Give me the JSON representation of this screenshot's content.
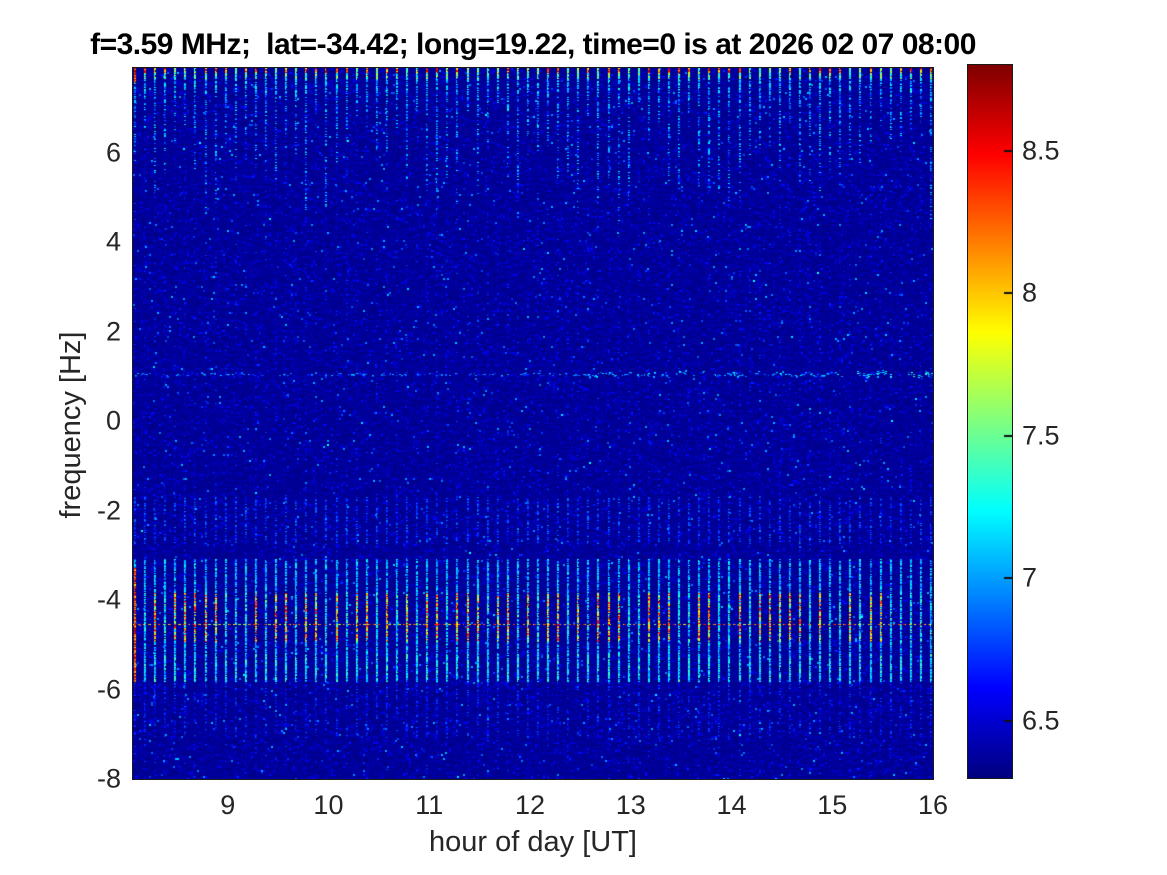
{
  "chart_data": {
    "type": "heatmap",
    "title": "f=3.59 MHz;  lat=-34.42; long=19.22, time=0 is at 2026 02 07 08:00",
    "xlabel": "hour of day [UT]",
    "ylabel": "frequency [Hz]",
    "xlim": [
      8.06,
      16
    ],
    "ylim": [
      -8,
      7.9
    ],
    "x_ticks": [
      9,
      10,
      11,
      12,
      13,
      14,
      15,
      16
    ],
    "y_ticks": [
      6,
      4,
      2,
      0,
      -2,
      -4,
      -6,
      -8
    ],
    "grid": false,
    "colorbar": {
      "min": 6.3,
      "max": 8.8,
      "ticks": [
        8.5,
        8,
        7.5,
        7,
        6.5
      ],
      "colormap": "jet",
      "position": "right"
    },
    "background_level": 6.35,
    "pulses": {
      "period_hours": 0.1,
      "start_hour": 8.07,
      "first_pulse_strong": true,
      "bands": [
        {
          "name": "top-tip",
          "freq_range": [
            7.35,
            7.9
          ],
          "level_range": [
            7.2,
            8.8
          ]
        },
        {
          "name": "top-tail",
          "freq_range": [
            4.5,
            7.35
          ],
          "level_range": [
            6.7,
            7.3
          ]
        },
        {
          "name": "weak-mid",
          "freq_range": [
            -2.75,
            -1.7
          ],
          "level_range": [
            6.6,
            7.0
          ]
        },
        {
          "name": "strong-mid",
          "freq_range": [
            -5.85,
            -3.1
          ],
          "level_range": [
            6.85,
            7.4
          ]
        },
        {
          "name": "strong-core",
          "freq_range": [
            -4.95,
            -3.85
          ],
          "level_range": [
            7.4,
            8.6
          ]
        },
        {
          "name": "lower-faint",
          "freq_range": [
            -7.1,
            -5.85
          ],
          "level_range": [
            6.55,
            6.9
          ]
        }
      ]
    },
    "horizontal_trace": {
      "freq": 1.05,
      "level_range": [
        6.7,
        7.7
      ],
      "strengthens_after_hour": 12.5
    },
    "dotted_line": {
      "freq": -4.55,
      "level_range": [
        7.5,
        8.6
      ]
    },
    "seed": 1337
  },
  "colors": {
    "figure_background": "#ffffff",
    "axis_text": "#262626",
    "title_text": "#000000",
    "heatmap_background_blue": "#0000a8"
  }
}
